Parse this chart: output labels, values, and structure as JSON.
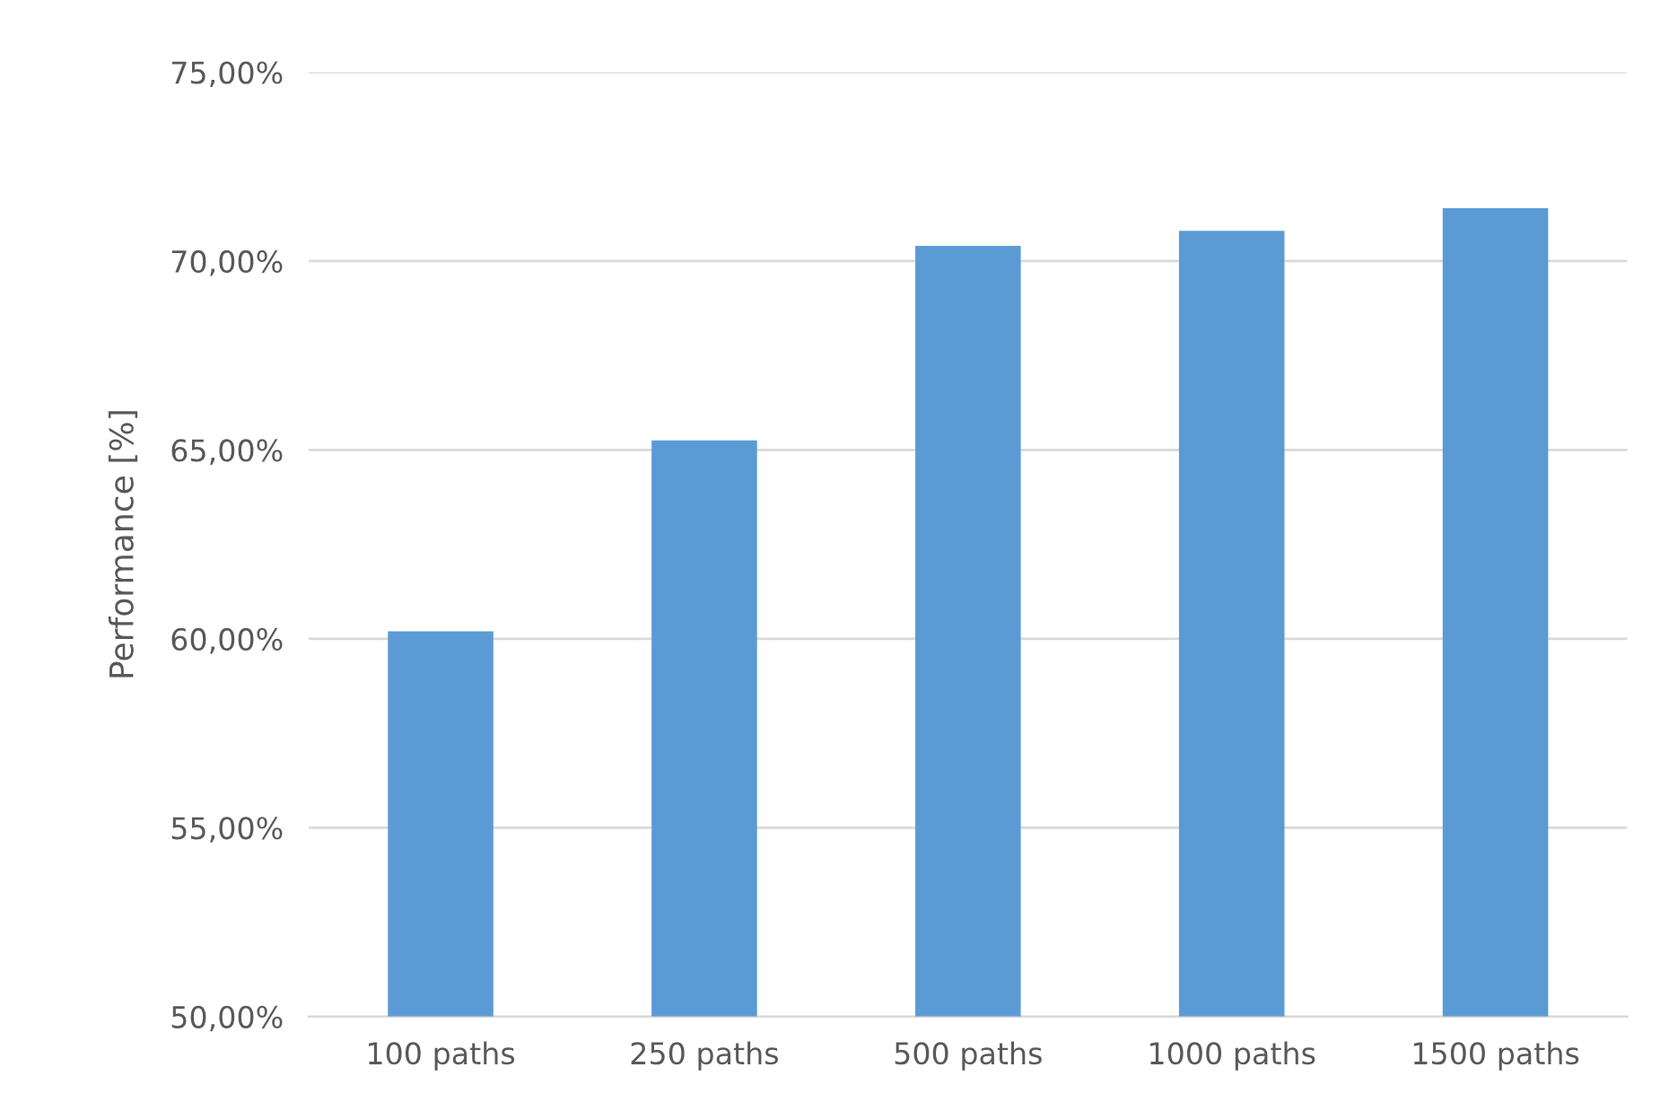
{
  "chart_data": {
    "type": "bar",
    "ylabel": "Performance [%]",
    "categories": [
      "100 paths",
      "250 paths",
      "500 paths",
      "1000 paths",
      "1500 paths"
    ],
    "series": [
      {
        "color": "#5b9bd5",
        "values": [
          60.2,
          65.25,
          70.4,
          70.8,
          71.4
        ]
      }
    ],
    "ylim": [
      50,
      75
    ],
    "yticks": [
      {
        "value": 50,
        "label": "50,00%"
      },
      {
        "value": 55,
        "label": "55,00%"
      },
      {
        "value": 60,
        "label": "60,00%"
      },
      {
        "value": 65,
        "label": "65,00%"
      },
      {
        "value": 70,
        "label": "70,00%"
      },
      {
        "value": 75,
        "label": "75,00%"
      }
    ],
    "grid": "y",
    "legend": false
  }
}
